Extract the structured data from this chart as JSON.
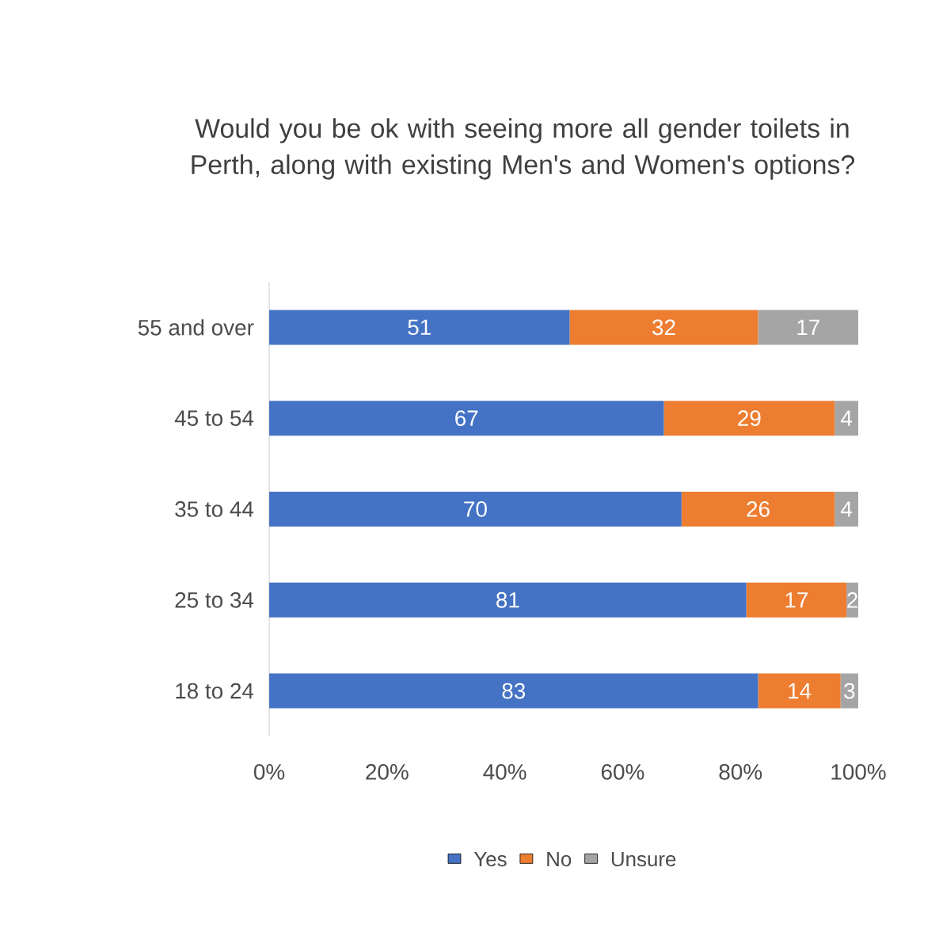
{
  "chart_data": {
    "type": "bar",
    "orientation": "horizontal",
    "stacked": true,
    "data_labels": true,
    "legend": "bottom",
    "title": "Would you be ok with seeing more all gender toilets in Perth, along with existing Men's and Women's options?",
    "categories": [
      "55 and over",
      "45 to 54",
      "35 to 44",
      "25 to 34",
      "18 to 24"
    ],
    "series": [
      {
        "name": "Yes",
        "color": "#4472c4",
        "values": [
          51,
          67,
          70,
          81,
          83
        ]
      },
      {
        "name": "No",
        "color": "#ed7d31",
        "values": [
          32,
          29,
          26,
          17,
          14
        ]
      },
      {
        "name": "Unsure",
        "color": "#a5a5a5",
        "values": [
          17,
          4,
          4,
          2,
          3
        ]
      }
    ],
    "xlim": [
      0,
      100
    ],
    "xticks": [
      {
        "value": 0,
        "label": "0%"
      },
      {
        "value": 20,
        "label": "20%"
      },
      {
        "value": 40,
        "label": "40%"
      },
      {
        "value": 60,
        "label": "60%"
      },
      {
        "value": 80,
        "label": "80%"
      },
      {
        "value": 100,
        "label": "100%"
      }
    ]
  }
}
